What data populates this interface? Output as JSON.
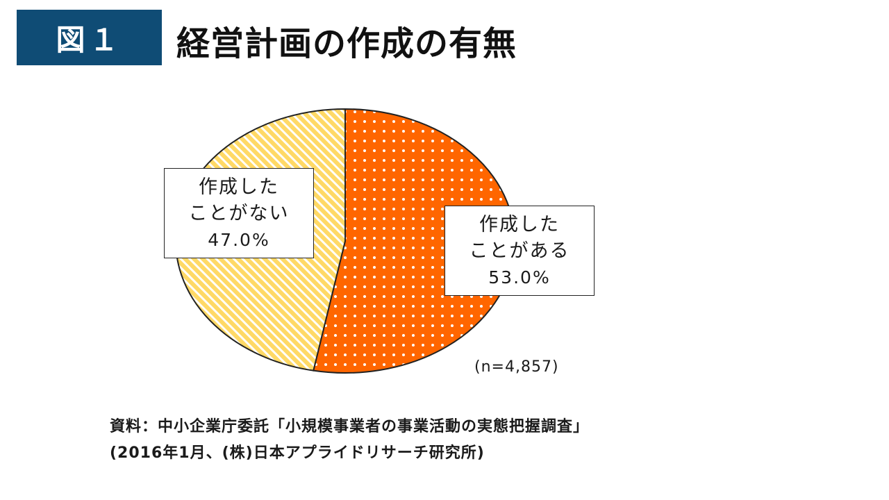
{
  "figure": {
    "badge": "図１",
    "title": "経営計画の作成の有無"
  },
  "chart_data": {
    "type": "pie",
    "slices": [
      {
        "label_line1": "作成した",
        "label_line2": "ことがある",
        "value": 53.0,
        "value_text": "53.0%",
        "color": "#ff6600",
        "pattern": "dots"
      },
      {
        "label_line1": "作成した",
        "label_line2": "ことがない",
        "value": 47.0,
        "value_text": "47.0%",
        "color": "#ffd966",
        "pattern": "diagonal-stripes"
      }
    ],
    "sample_note": "(n=4,857)"
  },
  "source": {
    "line1": "資料：中小企業庁委託「小規模事業者の事業活動の実態把握調査」",
    "line2": "(2016年1月、(株)日本アプライドリサーチ研究所)"
  }
}
